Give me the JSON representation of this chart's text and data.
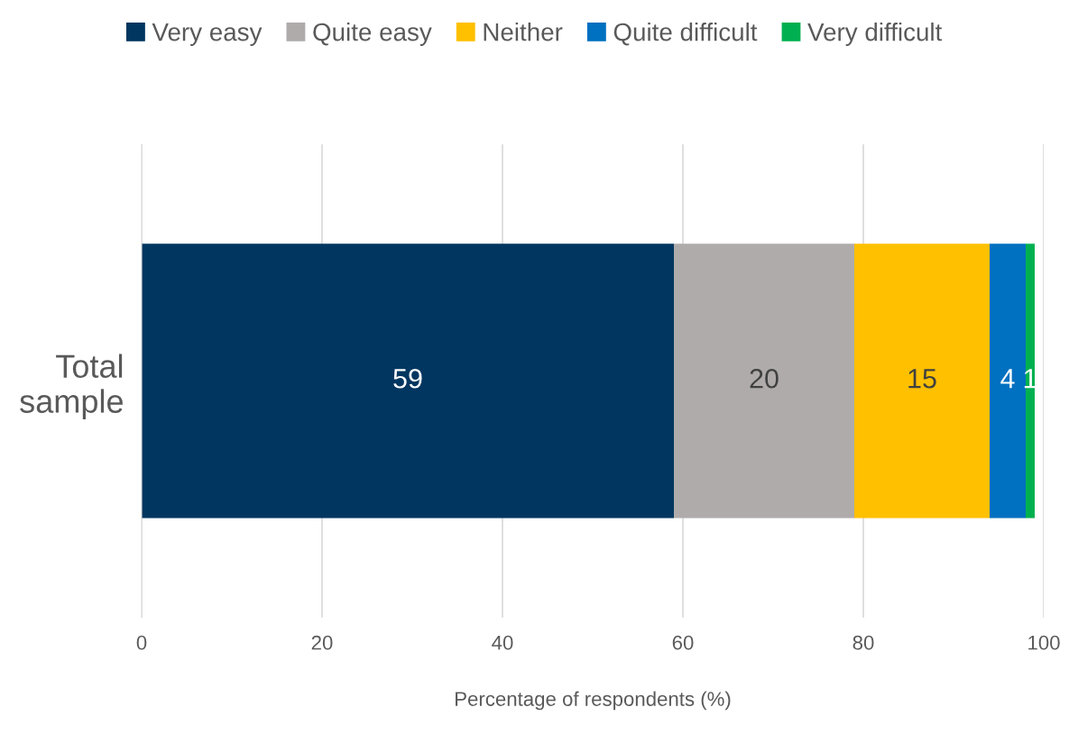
{
  "chart_data": {
    "type": "bar",
    "orientation": "horizontal",
    "stacked": true,
    "categories": [
      "Total sample"
    ],
    "series": [
      {
        "name": "Very easy",
        "color": "#003660",
        "values": [
          59
        ]
      },
      {
        "name": "Quite easy",
        "color": "#afabab",
        "values": [
          20
        ]
      },
      {
        "name": "Neither",
        "color": "#ffc000",
        "values": [
          15
        ]
      },
      {
        "name": "Quite difficult",
        "color": "#0070c0",
        "values": [
          4
        ]
      },
      {
        "name": "Very difficult",
        "color": "#00b050",
        "values": [
          1
        ]
      }
    ],
    "xlim": [
      0,
      100
    ],
    "xticks": [
      0,
      20,
      40,
      60,
      80,
      100
    ],
    "xlabel": "Percentage of respondents (%)",
    "grid": "x",
    "legend": "top",
    "data_labels": true
  }
}
